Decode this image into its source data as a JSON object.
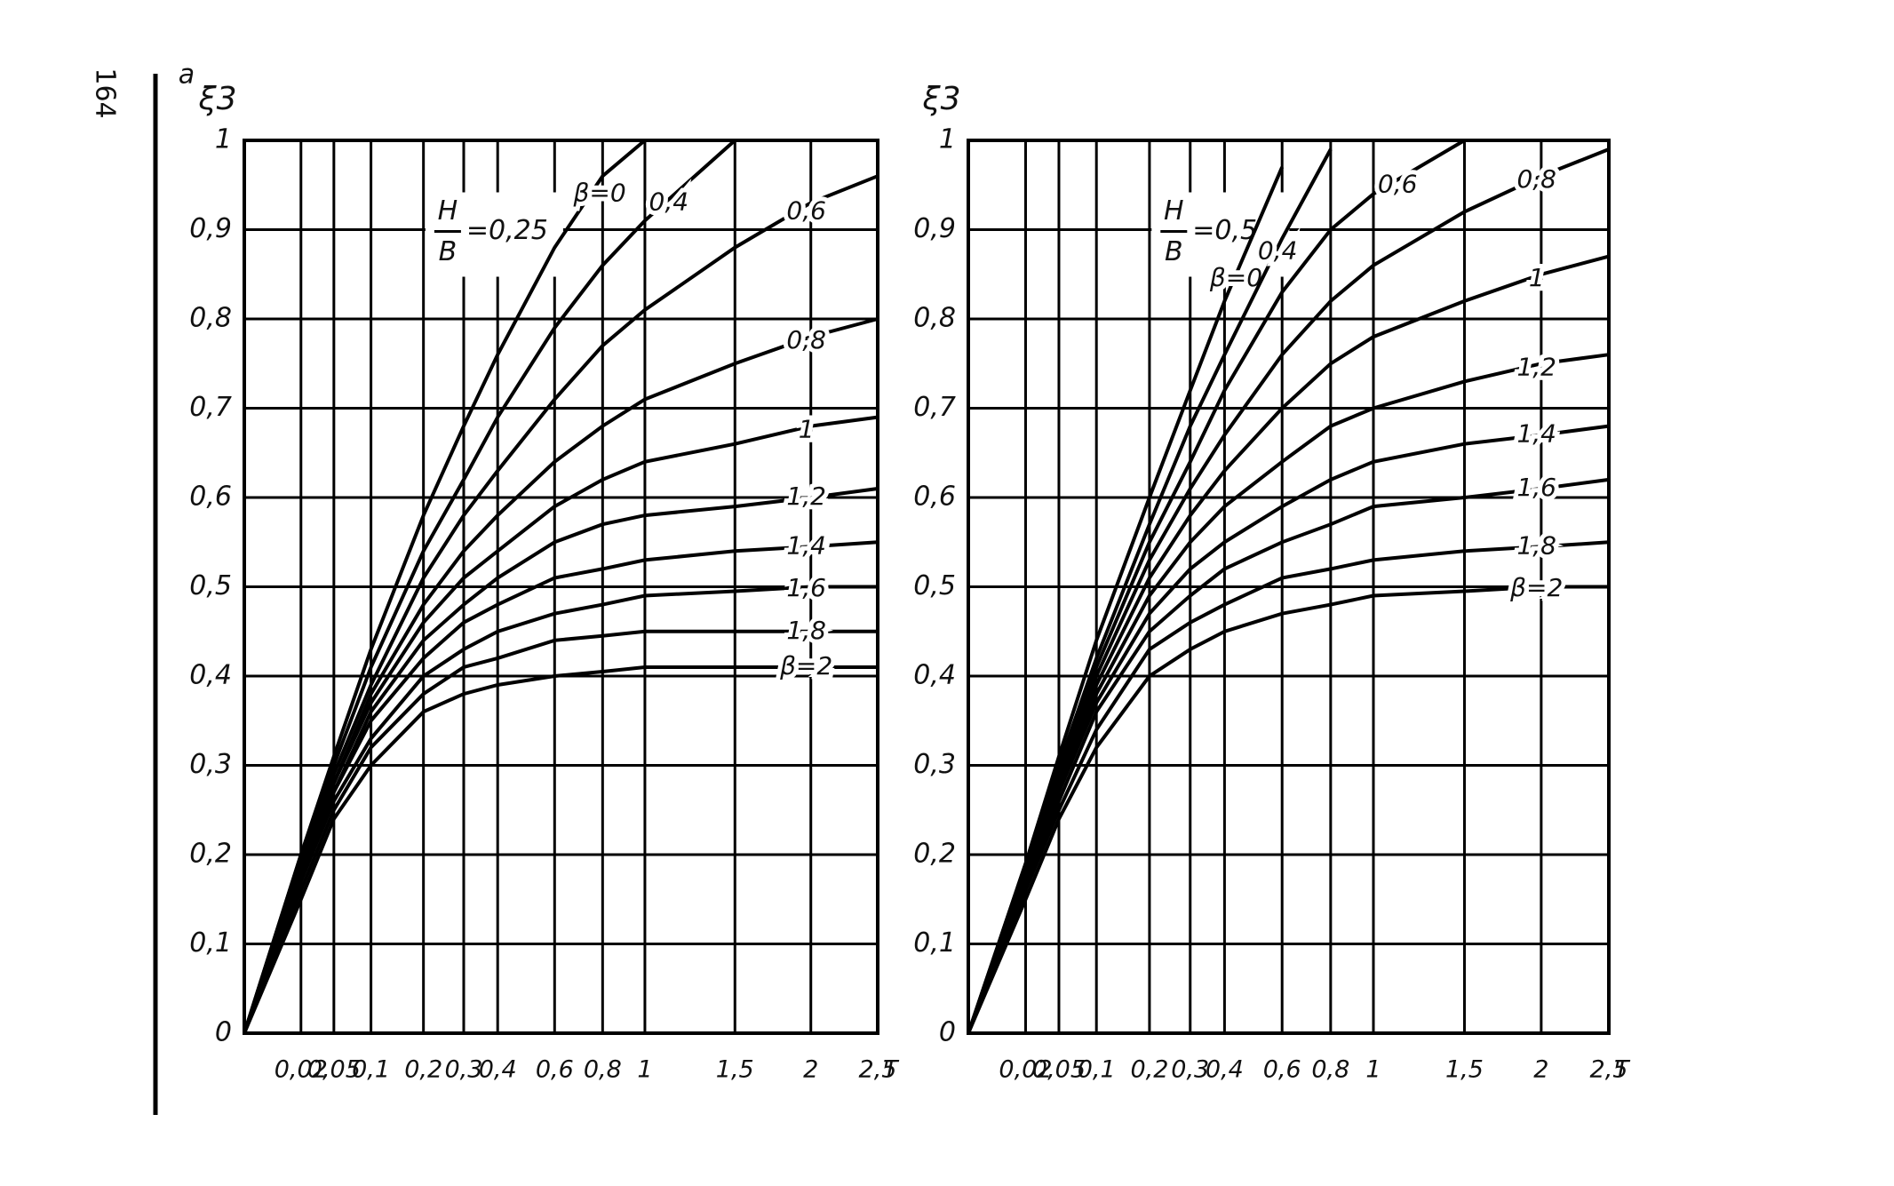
{
  "page_number": "164",
  "panel_label": "а",
  "chart_data": [
    {
      "type": "line",
      "ylabel": "ξ3",
      "xlabel": "T",
      "annotation": {
        "numerator": "H",
        "denominator": "B",
        "value": "=0,25"
      },
      "xscale": "sqrt",
      "grid": true,
      "color": "#000000",
      "x": [
        0,
        0.02,
        0.05,
        0.1,
        0.2,
        0.3,
        0.4,
        0.6,
        0.8,
        1,
        1.5,
        2,
        2.5
      ],
      "xlim": [
        0,
        2.5
      ],
      "ylim": [
        0,
        1
      ],
      "xticks": [
        {
          "value": 0.02,
          "label": "0,02"
        },
        {
          "value": 0.05,
          "label": "0,05"
        },
        {
          "value": 0.1,
          "label": "0,1"
        },
        {
          "value": 0.2,
          "label": "0,2"
        },
        {
          "value": 0.3,
          "label": "0,3"
        },
        {
          "value": 0.4,
          "label": "0,4"
        },
        {
          "value": 0.6,
          "label": "0,6"
        },
        {
          "value": 0.8,
          "label": "0,8"
        },
        1,
        {
          "value": 1.5,
          "label": "1,5"
        },
        2,
        {
          "value": 2.5,
          "label": "2,5"
        }
      ],
      "yticks": [
        0,
        {
          "value": 0.1,
          "label": "0,1"
        },
        {
          "value": 0.2,
          "label": "0,2"
        },
        {
          "value": 0.3,
          "label": "0,3"
        },
        {
          "value": 0.4,
          "label": "0,4"
        },
        {
          "value": 0.5,
          "label": "0,5"
        },
        {
          "value": 0.6,
          "label": "0,6"
        },
        {
          "value": 0.7,
          "label": "0,7"
        },
        {
          "value": 0.8,
          "label": "0,8"
        },
        {
          "value": 0.9,
          "label": "0,9"
        },
        1
      ],
      "series": [
        {
          "name": "β=0",
          "values": [
            0,
            0.2,
            0.31,
            0.43,
            0.58,
            0.68,
            0.76,
            0.88,
            0.96,
            1.0,
            null,
            null,
            null
          ]
        },
        {
          "name": "0,4",
          "values": [
            0,
            0.2,
            0.3,
            0.41,
            0.54,
            0.62,
            0.69,
            0.79,
            0.86,
            0.91,
            1.0,
            null,
            null
          ]
        },
        {
          "name": "0,6",
          "values": [
            0,
            0.19,
            0.29,
            0.39,
            0.51,
            0.58,
            0.63,
            0.71,
            0.77,
            0.81,
            0.88,
            0.93,
            0.96
          ]
        },
        {
          "name": "0,8",
          "values": [
            0,
            0.19,
            0.28,
            0.38,
            0.48,
            0.54,
            0.58,
            0.64,
            0.68,
            0.71,
            0.75,
            0.78,
            0.8
          ]
        },
        {
          "name": "1",
          "values": [
            0,
            0.18,
            0.28,
            0.37,
            0.46,
            0.51,
            0.54,
            0.59,
            0.62,
            0.64,
            0.66,
            0.68,
            0.69
          ]
        },
        {
          "name": "1,2",
          "values": [
            0,
            0.18,
            0.27,
            0.36,
            0.44,
            0.48,
            0.51,
            0.55,
            0.57,
            0.58,
            0.59,
            0.6,
            0.61
          ]
        },
        {
          "name": "1,4",
          "values": [
            0,
            0.17,
            0.27,
            0.35,
            0.42,
            0.46,
            0.48,
            0.51,
            0.52,
            0.53,
            0.54,
            0.545,
            0.55
          ]
        },
        {
          "name": "1,6",
          "values": [
            0,
            0.17,
            0.26,
            0.33,
            0.4,
            0.43,
            0.45,
            0.47,
            0.48,
            0.49,
            0.495,
            0.5,
            0.5
          ]
        },
        {
          "name": "1,8",
          "values": [
            0,
            0.16,
            0.25,
            0.32,
            0.38,
            0.41,
            0.42,
            0.44,
            0.445,
            0.45,
            0.45,
            0.45,
            0.45
          ]
        },
        {
          "name": "β=2",
          "values": [
            0,
            0.15,
            0.24,
            0.3,
            0.36,
            0.38,
            0.39,
            0.4,
            0.405,
            0.41,
            0.41,
            0.41,
            0.41
          ]
        }
      ]
    },
    {
      "type": "line",
      "ylabel": "ξ3",
      "xlabel": "T",
      "annotation": {
        "numerator": "H",
        "denominator": "B",
        "value": "=0,5"
      },
      "xscale": "sqrt",
      "grid": true,
      "color": "#000000",
      "x": [
        0,
        0.02,
        0.05,
        0.1,
        0.2,
        0.3,
        0.4,
        0.6,
        0.8,
        1,
        1.5,
        2,
        2.5
      ],
      "xlim": [
        0,
        2.5
      ],
      "ylim": [
        0,
        1
      ],
      "xticks": [
        {
          "value": 0.02,
          "label": "0,02"
        },
        {
          "value": 0.05,
          "label": "0,05"
        },
        {
          "value": 0.1,
          "label": "0,1"
        },
        {
          "value": 0.2,
          "label": "0,2"
        },
        {
          "value": 0.3,
          "label": "0,3"
        },
        {
          "value": 0.4,
          "label": "0,4"
        },
        {
          "value": 0.6,
          "label": "0,6"
        },
        {
          "value": 0.8,
          "label": "0,8"
        },
        1,
        {
          "value": 1.5,
          "label": "1,5"
        },
        2,
        {
          "value": 2.5,
          "label": "2,5"
        }
      ],
      "yticks": [
        0,
        {
          "value": 0.1,
          "label": "0,1"
        },
        {
          "value": 0.2,
          "label": "0,2"
        },
        {
          "value": 0.3,
          "label": "0,3"
        },
        {
          "value": 0.4,
          "label": "0,4"
        },
        {
          "value": 0.5,
          "label": "0,5"
        },
        {
          "value": 0.6,
          "label": "0,6"
        },
        {
          "value": 0.7,
          "label": "0,7"
        },
        {
          "value": 0.8,
          "label": "0,8"
        },
        {
          "value": 0.9,
          "label": "0,9"
        },
        1
      ],
      "series": [
        {
          "name": "β=0",
          "values": [
            0,
            0.19,
            0.31,
            0.44,
            0.6,
            0.72,
            0.82,
            0.97,
            null,
            null,
            null,
            null,
            null
          ]
        },
        {
          "name": "0,4",
          "values": [
            0,
            0.19,
            0.3,
            0.42,
            0.57,
            0.68,
            0.76,
            0.89,
            0.99,
            null,
            null,
            null,
            null
          ]
        },
        {
          "name": "0,6",
          "values": [
            0,
            0.18,
            0.29,
            0.41,
            0.55,
            0.64,
            0.72,
            0.83,
            0.9,
            0.94,
            1.0,
            null,
            null
          ]
        },
        {
          "name": "0,8",
          "values": [
            0,
            0.18,
            0.28,
            0.4,
            0.53,
            0.61,
            0.67,
            0.76,
            0.82,
            0.86,
            0.92,
            0.96,
            0.99
          ]
        },
        {
          "name": "1",
          "values": [
            0,
            0.17,
            0.28,
            0.39,
            0.51,
            0.58,
            0.63,
            0.7,
            0.75,
            0.78,
            0.82,
            0.85,
            0.87
          ]
        },
        {
          "name": "1,2",
          "values": [
            0,
            0.17,
            0.27,
            0.38,
            0.49,
            0.55,
            0.59,
            0.64,
            0.68,
            0.7,
            0.73,
            0.75,
            0.76
          ]
        },
        {
          "name": "1,4",
          "values": [
            0,
            0.17,
            0.27,
            0.37,
            0.47,
            0.52,
            0.55,
            0.59,
            0.62,
            0.64,
            0.66,
            0.67,
            0.68
          ]
        },
        {
          "name": "1,6",
          "values": [
            0,
            0.16,
            0.26,
            0.36,
            0.45,
            0.49,
            0.52,
            0.55,
            0.57,
            0.59,
            0.6,
            0.61,
            0.62
          ]
        },
        {
          "name": "1,8",
          "values": [
            0,
            0.16,
            0.25,
            0.34,
            0.43,
            0.46,
            0.48,
            0.51,
            0.52,
            0.53,
            0.54,
            0.545,
            0.55
          ]
        },
        {
          "name": "β=2",
          "values": [
            0,
            0.15,
            0.24,
            0.32,
            0.4,
            0.43,
            0.45,
            0.47,
            0.48,
            0.49,
            0.495,
            0.5,
            0.5
          ]
        }
      ]
    }
  ]
}
